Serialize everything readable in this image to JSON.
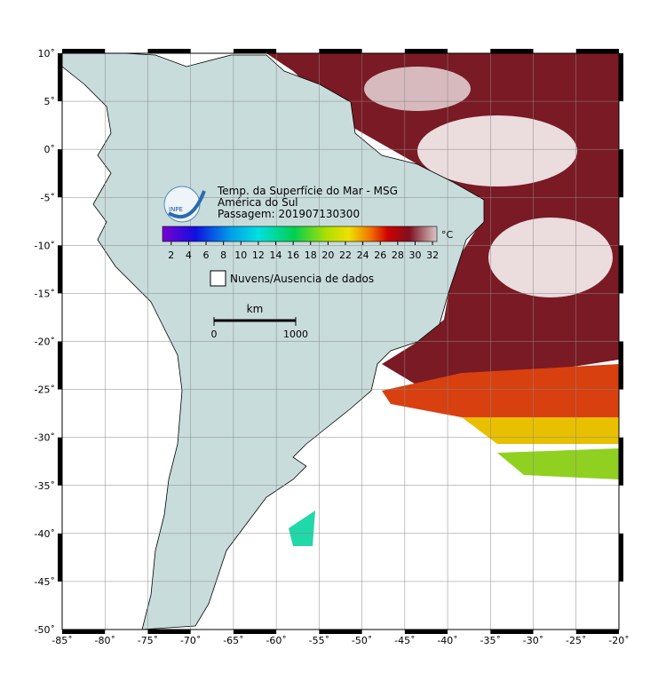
{
  "map": {
    "title_lines": [
      "Temp. da Superfície do Mar - MSG",
      "América do Sul",
      "Passagem: 201907130300"
    ],
    "logo_text": "INPE",
    "xlim": [
      -85,
      -20
    ],
    "ylim": [
      -50,
      10
    ],
    "xticks": [
      {
        "value": -85,
        "label": "-85˚"
      },
      {
        "value": -80,
        "label": "-80˚"
      },
      {
        "value": -75,
        "label": "-75˚"
      },
      {
        "value": -70,
        "label": "-70˚"
      },
      {
        "value": -65,
        "label": "-65˚"
      },
      {
        "value": -60,
        "label": "-60˚"
      },
      {
        "value": -55,
        "label": "-55˚"
      },
      {
        "value": -50,
        "label": "-50˚"
      },
      {
        "value": -45,
        "label": "-45˚"
      },
      {
        "value": -40,
        "label": "-40˚"
      },
      {
        "value": -35,
        "label": "-35˚"
      },
      {
        "value": -30,
        "label": "-30˚"
      },
      {
        "value": -25,
        "label": "-25˚"
      },
      {
        "value": -20,
        "label": "-20˚"
      }
    ],
    "yticks": [
      {
        "value": 10,
        "label": "10˚"
      },
      {
        "value": 5,
        "label": "5˚"
      },
      {
        "value": 0,
        "label": "0˚"
      },
      {
        "value": -5,
        "label": "-5˚"
      },
      {
        "value": -10,
        "label": "-10˚"
      },
      {
        "value": -15,
        "label": "-15˚"
      },
      {
        "value": -20,
        "label": "-20˚"
      },
      {
        "value": -25,
        "label": "-25˚"
      },
      {
        "value": -30,
        "label": "-30˚"
      },
      {
        "value": -35,
        "label": "-35˚"
      },
      {
        "value": -40,
        "label": "-40˚"
      },
      {
        "value": -45,
        "label": "-45˚"
      },
      {
        "value": -50,
        "label": "-50˚"
      }
    ],
    "grid": true,
    "colorbar": {
      "unit": "°C",
      "lim": [
        1,
        32.5
      ],
      "ticks": [
        2,
        4,
        6,
        8,
        10,
        12,
        14,
        16,
        18,
        20,
        22,
        24,
        26,
        28,
        30,
        32
      ]
    },
    "legend": "Nuvens/Ausencia de dados",
    "scale_bar": {
      "unit": "km",
      "ticks": [
        0,
        1000
      ]
    }
  }
}
